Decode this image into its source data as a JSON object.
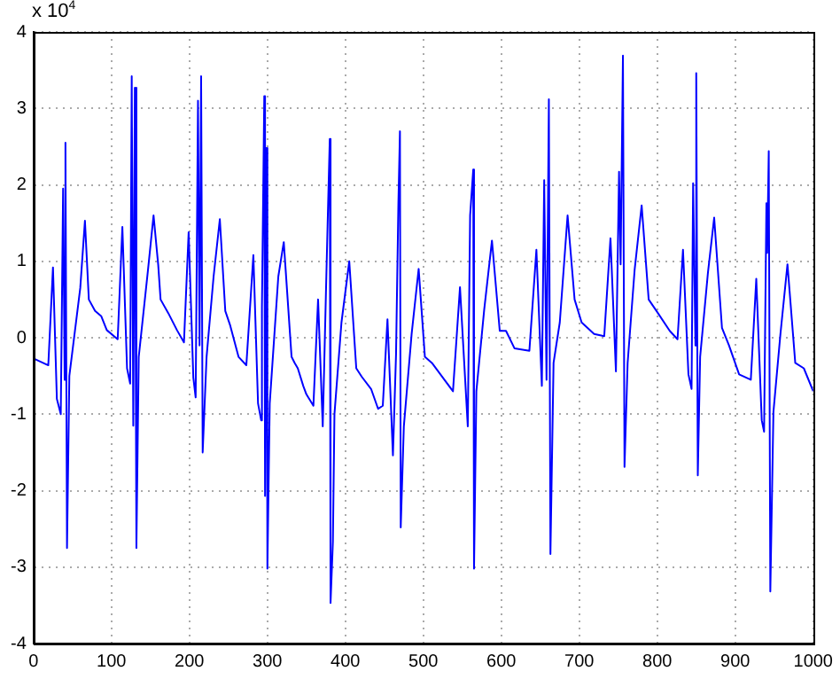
{
  "chart_data": {
    "type": "line",
    "annotations": [
      "x 10$^{4}$"
    ],
    "xlim": [
      0,
      1000
    ],
    "xticks": [
      0,
      100,
      200,
      300,
      400,
      500,
      600,
      700,
      800,
      900,
      1000
    ],
    "ylim": [
      -4,
      4
    ],
    "yticks": [
      -4,
      -3,
      -2,
      -1,
      0,
      1,
      2,
      3,
      4
    ],
    "grid": true,
    "marker": "none",
    "x": [
      0,
      19,
      25,
      30,
      35,
      38,
      40,
      41,
      43,
      46,
      60,
      66,
      71,
      79,
      87,
      94,
      108,
      114,
      120,
      124,
      126,
      128,
      130,
      132,
      135,
      147,
      154,
      160,
      163,
      173,
      184,
      193,
      199,
      205,
      208,
      211,
      213,
      215,
      217,
      222,
      231,
      239,
      246,
      252,
      263,
      273,
      282,
      288,
      292,
      293,
      296,
      297,
      299,
      300,
      303,
      314,
      321,
      331,
      335,
      339,
      346,
      350,
      359,
      365,
      371,
      375,
      378,
      380,
      381,
      384,
      386,
      395,
      405,
      414,
      421,
      433,
      442,
      448,
      454,
      461,
      465,
      468,
      470,
      471,
      475,
      485,
      494,
      502,
      511,
      527,
      538,
      547,
      557,
      560,
      564,
      565,
      568,
      578,
      588,
      598,
      606,
      617,
      636,
      645,
      652,
      655,
      658,
      661,
      663,
      667,
      675,
      685,
      694,
      703,
      719,
      732,
      740,
      747,
      751,
      753,
      756,
      758,
      762,
      771,
      780,
      789,
      801,
      816,
      826,
      833,
      840,
      844,
      846,
      849,
      850,
      852,
      855,
      865,
      873,
      883,
      892,
      905,
      920,
      927,
      934,
      937,
      940,
      941,
      943,
      945,
      949,
      958,
      967,
      977,
      988,
      1000
    ],
    "series": [
      {
        "color": "#0000ff",
        "values": [
          -0.27,
          -0.36,
          0.92,
          -0.8,
          -1,
          1.95,
          -0.55,
          2.55,
          -2.75,
          -0.5,
          0.65,
          1.53,
          0.5,
          0.35,
          0.28,
          0.1,
          -0.02,
          1.45,
          -0.4,
          -0.6,
          3.42,
          -1.15,
          3.27,
          -2.75,
          -0.25,
          0.9,
          1.6,
          0.95,
          0.5,
          0.32,
          0.1,
          -0.06,
          1.38,
          -0.52,
          -0.78,
          3.1,
          -0.1,
          3.42,
          -1.5,
          -0.25,
          0.8,
          1.55,
          0.35,
          0.17,
          -0.25,
          -0.36,
          1.08,
          -0.86,
          -1.08,
          0.4,
          3.16,
          -2.07,
          2.48,
          -3.02,
          -0.86,
          0.8,
          1.25,
          -0.25,
          -0.33,
          -0.4,
          -0.63,
          -0.74,
          -0.89,
          0.5,
          -1.16,
          0.55,
          1.8,
          2.6,
          -3.47,
          -2.67,
          -1,
          0.2,
          1,
          -0.4,
          -0.51,
          -0.67,
          -0.93,
          -0.89,
          0.24,
          -1.54,
          -0.21,
          1.76,
          2.7,
          -2.48,
          -1.16,
          0.05,
          0.9,
          -0.25,
          -0.33,
          -0.55,
          -0.7,
          0.66,
          -1.16,
          1.6,
          2.2,
          -3.02,
          -0.7,
          0.36,
          1.27,
          0.09,
          0.09,
          -0.14,
          -0.17,
          1.15,
          -0.63,
          2.06,
          -0.55,
          3.12,
          -2.83,
          -0.33,
          0.2,
          1.6,
          0.5,
          0.2,
          0.05,
          0.02,
          1.3,
          -0.44,
          2.17,
          0.96,
          3.69,
          -1.69,
          -0.33,
          0.89,
          1.73,
          0.5,
          0.32,
          0.09,
          -0.02,
          1.15,
          -0.48,
          -0.67,
          2.02,
          -0.1,
          3.46,
          -1.8,
          -0.25,
          0.85,
          1.57,
          0.13,
          -0.1,
          -0.48,
          -0.55,
          0.77,
          -1.08,
          -1.23,
          1.76,
          1.11,
          2.44,
          -3.32,
          -0.97,
          0.05,
          0.96,
          -0.33,
          -0.4,
          -0.7
        ]
      }
    ]
  }
}
